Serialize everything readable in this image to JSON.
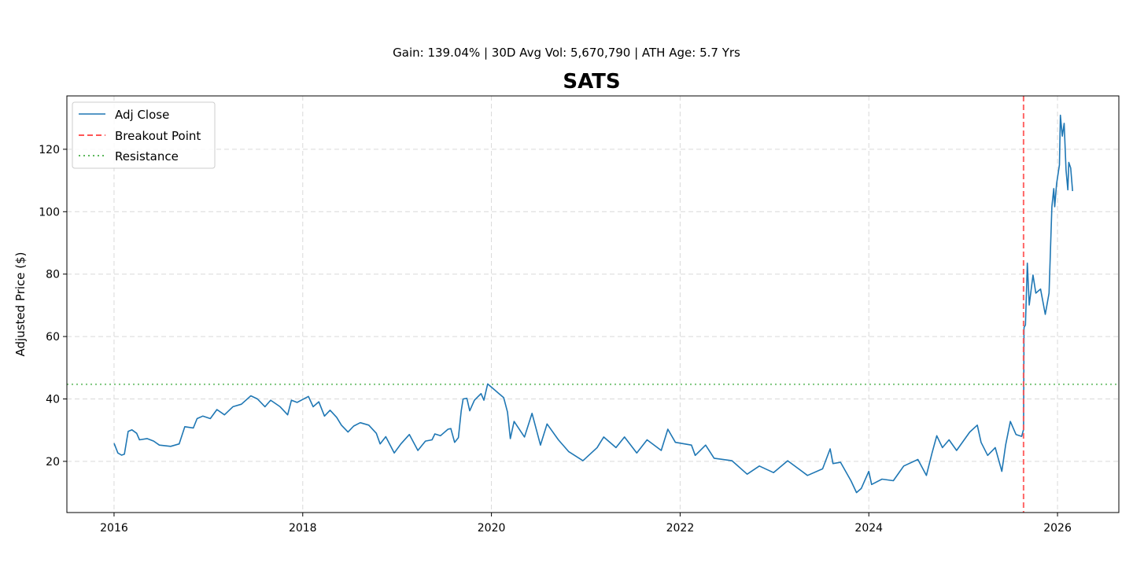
{
  "chart_data": {
    "type": "line",
    "title": "SATS",
    "subtitle": "Gain: 139.04% | 30D Avg Vol: 5,670,790 | ATH Age: 5.7 Yrs",
    "xlabel": "",
    "ylabel": "Adjusted Price ($)",
    "xlim": [
      2015.5,
      2026.65
    ],
    "ylim": [
      3.6,
      137.1
    ],
    "xticks": [
      2016,
      2018,
      2020,
      2022,
      2024,
      2026
    ],
    "xtick_labels": [
      "2016",
      "2018",
      "2020",
      "2022",
      "2024",
      "2026"
    ],
    "yticks": [
      20,
      40,
      60,
      80,
      100,
      120
    ],
    "ytick_labels": [
      "20",
      "40",
      "60",
      "80",
      "100",
      "120"
    ],
    "grid": true,
    "legend_position": "top-left",
    "legend": [
      "Adj Close",
      "Breakout Point",
      "Resistance"
    ],
    "colors": {
      "series": "#1f77b4",
      "breakout": "#ff5555",
      "resistance": "#5cb85c",
      "grid": "#d9d9d9"
    },
    "breakout_x": 2025.64,
    "resistance_y": 44.7,
    "series": [
      {
        "name": "Adj Close",
        "points": [
          [
            2016.0,
            25.8
          ],
          [
            2016.04,
            22.7
          ],
          [
            2016.08,
            22.0
          ],
          [
            2016.11,
            22.3
          ],
          [
            2016.15,
            29.6
          ],
          [
            2016.19,
            30.1
          ],
          [
            2016.24,
            29.0
          ],
          [
            2016.27,
            26.9
          ],
          [
            2016.35,
            27.3
          ],
          [
            2016.42,
            26.5
          ],
          [
            2016.48,
            25.2
          ],
          [
            2016.6,
            24.8
          ],
          [
            2016.69,
            25.6
          ],
          [
            2016.75,
            31.1
          ],
          [
            2016.84,
            30.7
          ],
          [
            2016.88,
            33.7
          ],
          [
            2016.94,
            34.5
          ],
          [
            2017.02,
            33.7
          ],
          [
            2017.09,
            36.6
          ],
          [
            2017.17,
            34.9
          ],
          [
            2017.26,
            37.5
          ],
          [
            2017.35,
            38.3
          ],
          [
            2017.45,
            41.0
          ],
          [
            2017.52,
            40.0
          ],
          [
            2017.6,
            37.5
          ],
          [
            2017.66,
            39.6
          ],
          [
            2017.76,
            37.5
          ],
          [
            2017.84,
            34.9
          ],
          [
            2017.88,
            39.6
          ],
          [
            2017.94,
            38.9
          ],
          [
            2018.06,
            40.8
          ],
          [
            2018.11,
            37.5
          ],
          [
            2018.17,
            39.1
          ],
          [
            2018.23,
            34.5
          ],
          [
            2018.29,
            36.4
          ],
          [
            2018.36,
            34.1
          ],
          [
            2018.41,
            31.6
          ],
          [
            2018.48,
            29.4
          ],
          [
            2018.54,
            31.3
          ],
          [
            2018.61,
            32.4
          ],
          [
            2018.7,
            31.6
          ],
          [
            2018.78,
            29.0
          ],
          [
            2018.82,
            25.6
          ],
          [
            2018.88,
            27.9
          ],
          [
            2018.97,
            22.7
          ],
          [
            2019.04,
            25.6
          ],
          [
            2019.13,
            28.6
          ],
          [
            2019.22,
            23.5
          ],
          [
            2019.3,
            26.5
          ],
          [
            2019.37,
            26.9
          ],
          [
            2019.4,
            28.8
          ],
          [
            2019.46,
            28.2
          ],
          [
            2019.54,
            30.3
          ],
          [
            2019.57,
            30.5
          ],
          [
            2019.61,
            26.1
          ],
          [
            2019.65,
            27.6
          ],
          [
            2019.68,
            36.2
          ],
          [
            2019.7,
            40.0
          ],
          [
            2019.74,
            40.2
          ],
          [
            2019.77,
            36.2
          ],
          [
            2019.82,
            39.6
          ],
          [
            2019.89,
            41.7
          ],
          [
            2019.92,
            39.6
          ],
          [
            2019.96,
            44.8
          ],
          [
            2020.13,
            40.4
          ],
          [
            2020.17,
            35.8
          ],
          [
            2020.2,
            27.3
          ],
          [
            2020.24,
            32.8
          ],
          [
            2020.35,
            27.8
          ],
          [
            2020.43,
            35.4
          ],
          [
            2020.52,
            25.2
          ],
          [
            2020.59,
            32.0
          ],
          [
            2020.71,
            26.9
          ],
          [
            2020.82,
            23.1
          ],
          [
            2020.97,
            20.2
          ],
          [
            2021.12,
            24.4
          ],
          [
            2021.19,
            27.8
          ],
          [
            2021.32,
            24.4
          ],
          [
            2021.41,
            27.8
          ],
          [
            2021.54,
            22.7
          ],
          [
            2021.65,
            26.9
          ],
          [
            2021.8,
            23.5
          ],
          [
            2021.87,
            30.3
          ],
          [
            2021.95,
            26.1
          ],
          [
            2022.12,
            25.2
          ],
          [
            2022.16,
            21.9
          ],
          [
            2022.27,
            25.2
          ],
          [
            2022.36,
            21.0
          ],
          [
            2022.55,
            20.2
          ],
          [
            2022.71,
            15.9
          ],
          [
            2022.84,
            18.5
          ],
          [
            2022.99,
            16.4
          ],
          [
            2023.14,
            20.2
          ],
          [
            2023.35,
            15.5
          ],
          [
            2023.51,
            17.6
          ],
          [
            2023.59,
            24.0
          ],
          [
            2023.62,
            19.3
          ],
          [
            2023.7,
            19.7
          ],
          [
            2023.81,
            13.8
          ],
          [
            2023.87,
            10.0
          ],
          [
            2023.92,
            11.3
          ],
          [
            2024.0,
            16.8
          ],
          [
            2024.03,
            12.6
          ],
          [
            2024.14,
            14.3
          ],
          [
            2024.26,
            13.8
          ],
          [
            2024.37,
            18.5
          ],
          [
            2024.52,
            20.6
          ],
          [
            2024.61,
            15.5
          ],
          [
            2024.67,
            22.7
          ],
          [
            2024.72,
            28.2
          ],
          [
            2024.78,
            24.4
          ],
          [
            2024.85,
            26.9
          ],
          [
            2024.93,
            23.5
          ],
          [
            2025.07,
            29.4
          ],
          [
            2025.15,
            31.6
          ],
          [
            2025.19,
            26.1
          ],
          [
            2025.26,
            21.9
          ],
          [
            2025.34,
            24.4
          ],
          [
            2025.41,
            16.8
          ],
          [
            2025.45,
            25.2
          ],
          [
            2025.5,
            32.8
          ],
          [
            2025.56,
            28.6
          ],
          [
            2025.62,
            28.0
          ],
          [
            2025.64,
            30.2
          ],
          [
            2025.645,
            62.9
          ],
          [
            2025.66,
            63.7
          ],
          [
            2025.68,
            83.5
          ],
          [
            2025.7,
            70.1
          ],
          [
            2025.74,
            79.7
          ],
          [
            2025.77,
            73.9
          ],
          [
            2025.82,
            75.2
          ],
          [
            2025.87,
            67.1
          ],
          [
            2025.91,
            73.9
          ],
          [
            2025.94,
            101.6
          ],
          [
            2025.96,
            107.4
          ],
          [
            2025.97,
            101.6
          ],
          [
            2025.99,
            109.0
          ],
          [
            2026.02,
            115.0
          ],
          [
            2026.03,
            130.9
          ],
          [
            2026.05,
            124.2
          ],
          [
            2026.07,
            128.3
          ],
          [
            2026.09,
            113.3
          ],
          [
            2026.11,
            107.0
          ],
          [
            2026.12,
            115.8
          ],
          [
            2026.14,
            114.0
          ],
          [
            2026.16,
            106.6
          ]
        ]
      }
    ]
  }
}
